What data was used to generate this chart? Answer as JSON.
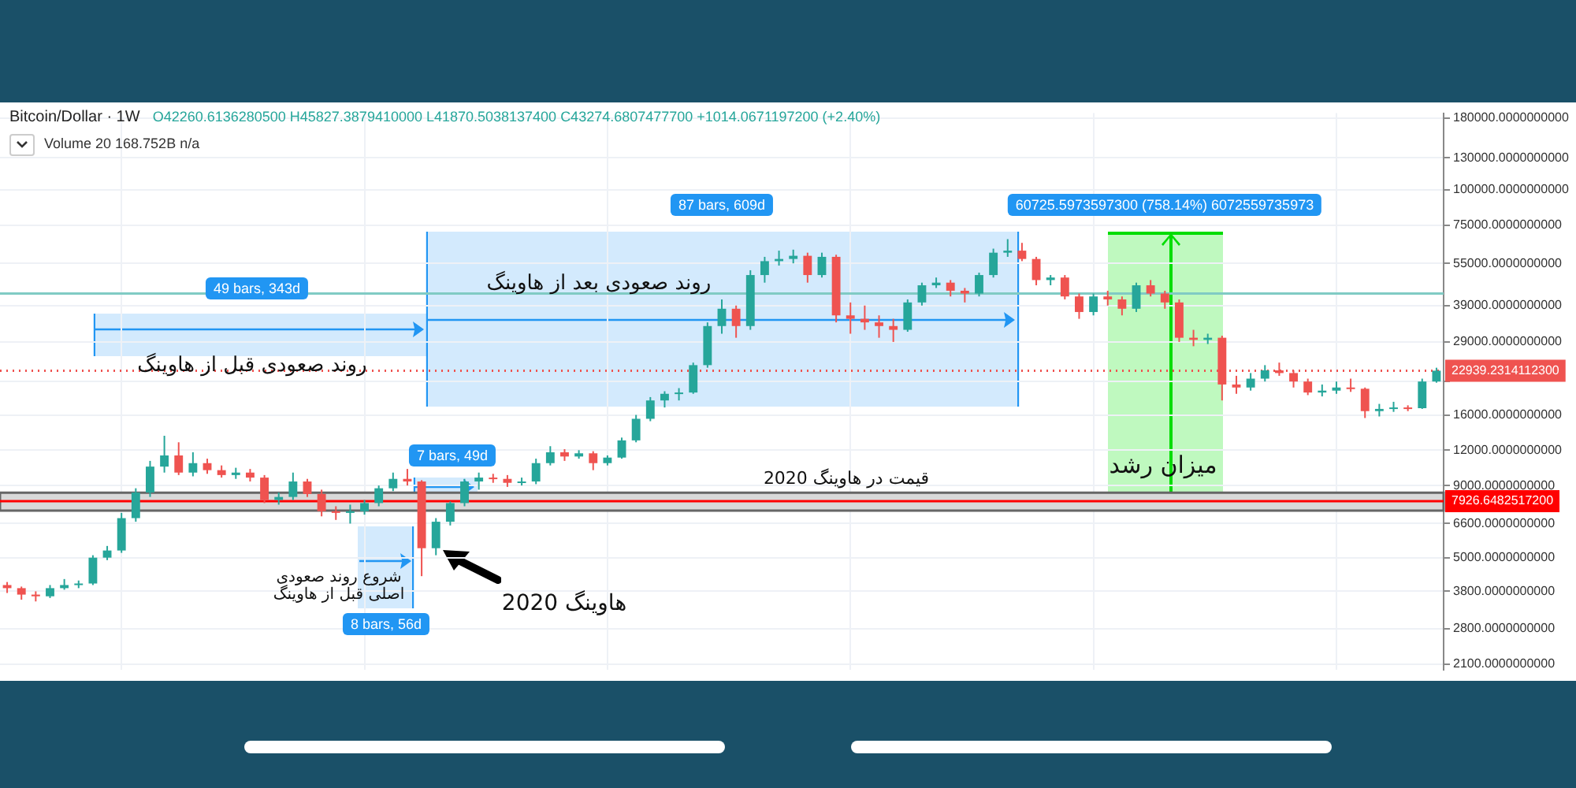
{
  "chart_data": {
    "type": "candlestick",
    "title": "Bitcoin/Dollar · 1W",
    "subtitle": "O42260.6136280500 H45827.3879410000 L41870.5038137400 C43274.6807477700 +1014.0671197200 (+2.40%)",
    "annotations": [
      "Volume 20 168.752B n/a",
      "49 bars, 343d",
      "87 bars, 609d",
      "7 bars, 49d",
      "8 bars, 56d",
      "60725.5973597300 (758.14%) 6072559735973",
      "روند صعودی قبل از هاوینگ",
      "روند صعودی بعد از هاوینگ",
      "شروع روند صعودی اصلی قبل از هاوینگ",
      "هاوینگ 2020",
      "میزان رشد"
    ],
    "categories": [
      null,
      null,
      null,
      null,
      null,
      null,
      null,
      null,
      null,
      null,
      null,
      null,
      null,
      null,
      null,
      null,
      null,
      null,
      null,
      null,
      null,
      null,
      null,
      null,
      null,
      null,
      null,
      null,
      null,
      null,
      null,
      null,
      null,
      null,
      null,
      null,
      null,
      null,
      null,
      null,
      null,
      null,
      null,
      null,
      null,
      null,
      null,
      null,
      null,
      null,
      null,
      null,
      null,
      null,
      null,
      null,
      null,
      null,
      null,
      null,
      null,
      null,
      null,
      null,
      null,
      null,
      null,
      null,
      null,
      null,
      null,
      null,
      null,
      null,
      null,
      null,
      null,
      null,
      null,
      null,
      null,
      null,
      null,
      null,
      null,
      null,
      null,
      null,
      null,
      null,
      null,
      null,
      null,
      null,
      null,
      null,
      null,
      null,
      null,
      null,
      null
    ],
    "ohlc": [
      [
        4000,
        4100,
        3750,
        3900
      ],
      [
        3900,
        3950,
        3550,
        3700
      ],
      [
        3700,
        3800,
        3500,
        3650
      ],
      [
        3650,
        4000,
        3600,
        3900
      ],
      [
        3900,
        4200,
        3850,
        4000
      ],
      [
        4000,
        4150,
        3900,
        4050
      ],
      [
        4050,
        5100,
        4000,
        5000
      ],
      [
        5000,
        5500,
        4900,
        5300
      ],
      [
        5300,
        7200,
        5200,
        6900
      ],
      [
        6900,
        8800,
        6700,
        8500
      ],
      [
        8500,
        11000,
        8200,
        10500
      ],
      [
        10500,
        13500,
        10000,
        11500
      ],
      [
        11500,
        12800,
        9800,
        10000
      ],
      [
        10000,
        11800,
        9700,
        10800
      ],
      [
        10800,
        11200,
        9900,
        10200
      ],
      [
        10200,
        10600,
        9600,
        9800
      ],
      [
        9800,
        10400,
        9500,
        10000
      ],
      [
        10000,
        10300,
        9300,
        9600
      ],
      [
        9600,
        9800,
        7800,
        8000
      ],
      [
        8000,
        8500,
        7700,
        8200
      ],
      [
        8200,
        10000,
        8000,
        9300
      ],
      [
        9300,
        9500,
        8200,
        8400
      ],
      [
        8400,
        8700,
        7000,
        7300
      ],
      [
        7300,
        7600,
        6800,
        7200
      ],
      [
        7200,
        7700,
        6600,
        7300
      ],
      [
        7300,
        8000,
        7100,
        7800
      ],
      [
        7800,
        9000,
        7600,
        8800
      ],
      [
        8800,
        10000,
        8600,
        9500
      ],
      [
        9500,
        10300,
        9000,
        9300
      ],
      [
        9300,
        9400,
        4300,
        5400
      ],
      [
        5400,
        6900,
        5100,
        6700
      ],
      [
        6700,
        7900,
        6500,
        7800
      ],
      [
        7800,
        9500,
        7600,
        9300
      ],
      [
        9300,
        10000,
        8700,
        9600
      ],
      [
        9600,
        9900,
        9200,
        9500
      ],
      [
        9500,
        9800,
        8900,
        9200
      ],
      [
        9200,
        9600,
        9000,
        9300
      ],
      [
        9300,
        11200,
        9100,
        10800
      ],
      [
        10800,
        12400,
        10600,
        11800
      ],
      [
        11800,
        12100,
        11000,
        11400
      ],
      [
        11400,
        12000,
        11200,
        11700
      ],
      [
        11700,
        11900,
        10200,
        10800
      ],
      [
        10800,
        11500,
        10600,
        11300
      ],
      [
        11300,
        13300,
        11200,
        13000
      ],
      [
        13000,
        16000,
        12800,
        15500
      ],
      [
        15500,
        18500,
        15200,
        18000
      ],
      [
        18000,
        19400,
        17000,
        19000
      ],
      [
        19000,
        19900,
        18000,
        19200
      ],
      [
        19200,
        24500,
        19000,
        24000
      ],
      [
        24000,
        34000,
        23500,
        33000
      ],
      [
        33000,
        41000,
        31000,
        38000
      ],
      [
        38000,
        39000,
        30000,
        33000
      ],
      [
        33000,
        52000,
        32000,
        50000
      ],
      [
        50000,
        58000,
        47000,
        56000
      ],
      [
        56000,
        61000,
        54000,
        57000
      ],
      [
        57000,
        61500,
        55000,
        58500
      ],
      [
        58500,
        60000,
        47000,
        50000
      ],
      [
        50000,
        60000,
        49000,
        58000
      ],
      [
        58000,
        59000,
        34000,
        36000
      ],
      [
        36000,
        40000,
        31000,
        35000
      ],
      [
        35000,
        39000,
        32000,
        34000
      ],
      [
        34000,
        36000,
        30000,
        33000
      ],
      [
        33000,
        35000,
        29000,
        32000
      ],
      [
        32000,
        41000,
        31500,
        40000
      ],
      [
        40000,
        47000,
        39000,
        46000
      ],
      [
        46000,
        49000,
        45000,
        47000
      ],
      [
        47000,
        48000,
        42000,
        44000
      ],
      [
        44000,
        45000,
        40000,
        43000
      ],
      [
        43000,
        51000,
        42000,
        50000
      ],
      [
        50000,
        62000,
        49000,
        60000
      ],
      [
        60000,
        67000,
        58000,
        61000
      ],
      [
        61000,
        65000,
        56000,
        57000
      ],
      [
        57000,
        58000,
        46000,
        48000
      ],
      [
        48000,
        50000,
        46000,
        49000
      ],
      [
        49000,
        50000,
        41000,
        42000
      ],
      [
        42000,
        43000,
        35000,
        37000
      ],
      [
        37000,
        43000,
        36000,
        42000
      ],
      [
        42000,
        44000,
        39000,
        41000
      ],
      [
        41000,
        42000,
        36000,
        38000
      ],
      [
        38000,
        47000,
        37000,
        46000
      ],
      [
        46000,
        48000,
        42000,
        43000
      ],
      [
        43000,
        44000,
        38000,
        40000
      ],
      [
        40000,
        41000,
        29000,
        30000
      ],
      [
        30000,
        32000,
        28000,
        29500
      ],
      [
        29500,
        31000,
        28500,
        30000
      ],
      [
        30000,
        30500,
        18000,
        20500
      ],
      [
        20500,
        22000,
        19000,
        20000
      ],
      [
        20000,
        22500,
        19500,
        21500
      ],
      [
        21500,
        24000,
        21000,
        23000
      ],
      [
        23000,
        24500,
        22000,
        22500
      ],
      [
        22500,
        23000,
        20000,
        21000
      ],
      [
        21000,
        21500,
        18800,
        19200
      ],
      [
        19200,
        20500,
        18600,
        19500
      ],
      [
        19500,
        21000,
        19000,
        20000
      ],
      [
        20000,
        21500,
        19300,
        19800
      ],
      [
        19800,
        20000,
        15600,
        16500
      ],
      [
        16500,
        17500,
        15800,
        16800
      ],
      [
        16800,
        17800,
        16400,
        17000
      ],
      [
        17000,
        17300,
        16500,
        16900
      ],
      [
        16900,
        21500,
        16800,
        21000
      ],
      [
        21000,
        23500,
        20800,
        22939
      ]
    ],
    "colors": [
      "#ef5350",
      "#ef5350",
      "#ef5350",
      "#26a69a",
      "#26a69a",
      "#26a69a",
      "#26a69a",
      "#26a69a",
      "#26a69a",
      "#26a69a",
      "#26a69a",
      "#26a69a",
      "#ef5350",
      "#26a69a",
      "#ef5350",
      "#ef5350",
      "#26a69a",
      "#ef5350",
      "#ef5350",
      "#26a69a",
      "#26a69a",
      "#ef5350",
      "#ef5350",
      "#ef5350",
      "#26a69a",
      "#26a69a",
      "#26a69a",
      "#26a69a",
      "#ef5350",
      "#ef5350",
      "#26a69a",
      "#26a69a",
      "#26a69a",
      "#26a69a",
      "#ef5350",
      "#ef5350",
      "#26a69a",
      "#26a69a",
      "#26a69a",
      "#ef5350",
      "#26a69a",
      "#ef5350",
      "#26a69a",
      "#26a69a",
      "#26a69a",
      "#26a69a",
      "#26a69a",
      "#26a69a",
      "#26a69a",
      "#26a69a",
      "#26a69a",
      "#ef5350",
      "#26a69a",
      "#26a69a",
      "#26a69a",
      "#26a69a",
      "#ef5350",
      "#26a69a",
      "#ef5350",
      "#ef5350",
      "#ef5350",
      "#ef5350",
      "#ef5350",
      "#26a69a",
      "#26a69a",
      "#26a69a",
      "#ef5350",
      "#ef5350",
      "#26a69a",
      "#26a69a",
      "#26a69a",
      "#ef5350",
      "#ef5350",
      "#26a69a",
      "#ef5350",
      "#ef5350",
      "#26a69a",
      "#ef5350",
      "#ef5350",
      "#26a69a",
      "#ef5350",
      "#ef5350",
      "#ef5350",
      "#ef5350",
      "#26a69a",
      "#ef5350",
      "#ef5350",
      "#26a69a",
      "#26a69a",
      "#ef5350",
      "#ef5350",
      "#ef5350",
      "#26a69a",
      "#26a69a",
      "#ef5350",
      "#ef5350",
      "#26a69a",
      "#26a69a",
      "#ef5350",
      "#26a69a",
      "#26a69a"
    ],
    "log": "y",
    "ylim": [
      2000,
      187000
    ],
    "yticks": [
      {
        "value": 2100,
        "label": "2100.0000000000"
      },
      {
        "value": 2800,
        "label": "2800.0000000000"
      },
      {
        "value": 3800,
        "label": "3800.0000000000"
      },
      {
        "value": 5000,
        "label": "5000.0000000000"
      },
      {
        "value": 6600,
        "label": "6600.0000000000"
      },
      {
        "value": 9000,
        "label": "9000.0000000000"
      },
      {
        "value": 12000,
        "label": "12000.0000000000"
      },
      {
        "value": 16000,
        "label": "16000.0000000000"
      },
      {
        "value": 21000,
        "label": null
      },
      {
        "value": 29000,
        "label": "29000.0000000000"
      },
      {
        "value": 39000,
        "label": "39000.0000000000"
      },
      {
        "value": 55000,
        "label": "55000.0000000000"
      },
      {
        "value": 75000,
        "label": "75000.0000000000"
      },
      {
        "value": 100000,
        "label": "100000.0000000000"
      },
      {
        "value": 130000,
        "label": "130000.0000000000"
      },
      {
        "value": 180000,
        "label": "180000.0000000000"
      }
    ],
    "tick_labels": "y",
    "grid": true,
    "legend": false,
    "bands": [
      {
        "axis": "y",
        "from": 7330,
        "to": 8490,
        "label": "قیمت در هاوینگ 2020",
        "color": "#d9d9d9"
      }
    ],
    "ref_lines": [
      {
        "axis": "y",
        "value": 7926.64825172,
        "label": "7926.6482517200",
        "color": "#ff0000"
      },
      {
        "axis": "y",
        "value": 22939.23141123,
        "label": "22939.2314112300",
        "color": "#ef5350",
        "line_style": "dotted"
      },
      {
        "axis": "y",
        "value": 43000,
        "color": "#80cbc4"
      }
    ]
  }
}
